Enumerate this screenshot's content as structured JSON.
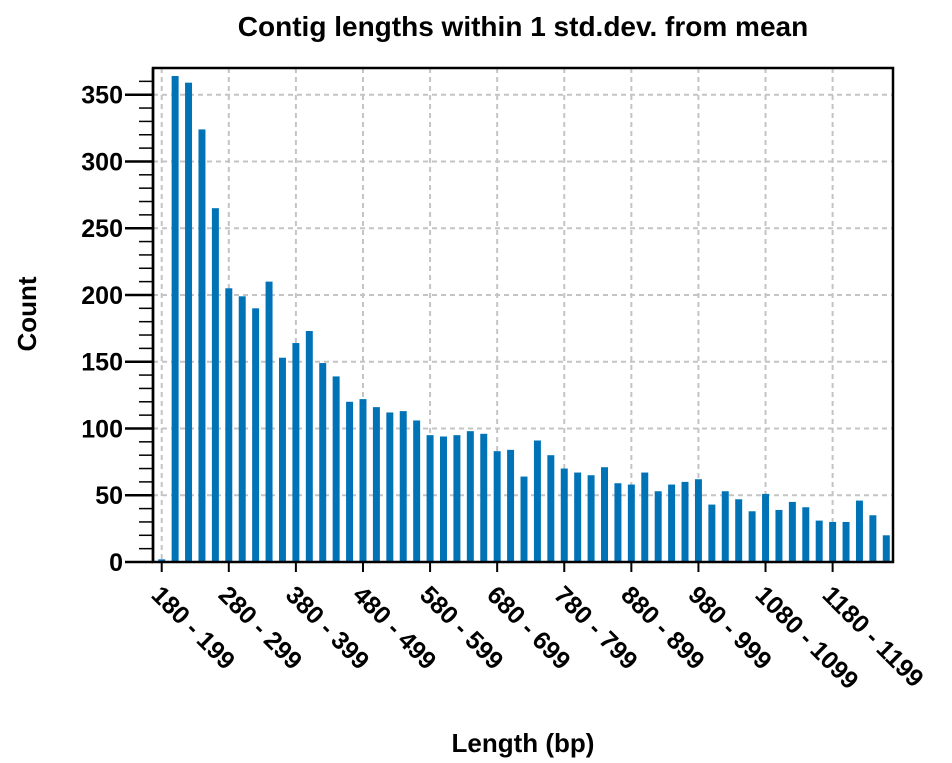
{
  "chart_data": {
    "type": "bar",
    "title": "Contig lengths within 1 std.dev. from mean",
    "xlabel": "Length (bp)",
    "ylabel": "Count",
    "ylim": [
      0,
      370
    ],
    "yticks": [
      0,
      50,
      100,
      150,
      200,
      250,
      300,
      350
    ],
    "grid": true,
    "bar_color": "#0073b7",
    "x_tick_labels": [
      "180 - 199",
      "280 - 299",
      "380 - 399",
      "480 - 499",
      "580 - 599",
      "680 - 699",
      "780 - 799",
      "880 - 899",
      "980 - 999",
      "1080 - 1099",
      "1180 - 1199"
    ],
    "x_tick_positions": [
      0,
      5,
      10,
      15,
      20,
      25,
      30,
      35,
      40,
      45,
      50
    ],
    "values": [
      2,
      364,
      359,
      324,
      265,
      205,
      199,
      190,
      210,
      153,
      164,
      173,
      149,
      139,
      120,
      122,
      116,
      112,
      113,
      106,
      95,
      94,
      95,
      98,
      96,
      83,
      84,
      64,
      91,
      80,
      70,
      67,
      65,
      71,
      59,
      58,
      67,
      53,
      58,
      60,
      62,
      43,
      53,
      47,
      38,
      51,
      39,
      45,
      41,
      31,
      30,
      30,
      46,
      35,
      20
    ]
  }
}
